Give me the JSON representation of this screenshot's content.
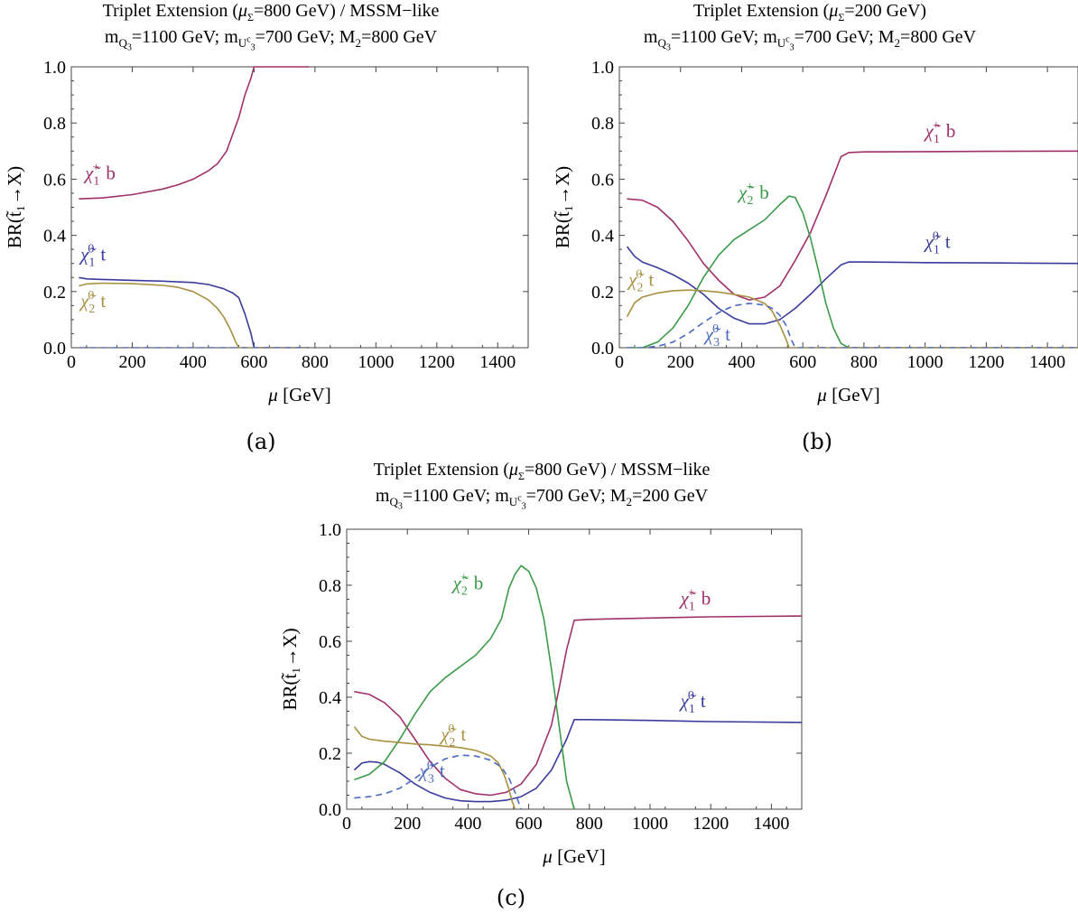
{
  "panels": [
    {
      "id": "a",
      "caption": "(a)",
      "title_line1": {
        "pre": "Triplet Extension (",
        "mu": "μ",
        "mu_sub": "Σ",
        "post": "=800 GeV) / MSSM−like"
      },
      "title_line2": {
        "q_pre": "m",
        "q_sub": "Q",
        "q_subsub": "3",
        "q_val": "=1100 GeV; m",
        "u_sub": "U",
        "u_subsup": "c",
        "u_subsub": "3",
        "u_val": "=700 GeV; M",
        "m_sub": "2",
        "m_val": "=800 GeV"
      }
    },
    {
      "id": "b",
      "caption": "(b)",
      "title_line1": {
        "pre": "Triplet Extension (",
        "mu": "μ",
        "mu_sub": "Σ",
        "post": "=200 GeV)"
      },
      "title_line2": {
        "q_pre": "m",
        "q_sub": "Q",
        "q_subsub": "3",
        "q_val": "=1100 GeV; m",
        "u_sub": "U",
        "u_subsup": "c",
        "u_subsub": "3",
        "u_val": "=700 GeV; M",
        "m_sub": "2",
        "m_val": "=800 GeV"
      }
    },
    {
      "id": "c",
      "caption": "(c)",
      "title_line1": {
        "pre": "Triplet Extension (",
        "mu": "μ",
        "mu_sub": "Σ",
        "post": "=800 GeV) / MSSM−like"
      },
      "title_line2": {
        "q_pre": "m",
        "q_sub": "Q",
        "q_subsub": "3",
        "q_val": "=1100 GeV; m",
        "u_sub": "U",
        "u_subsup": "c",
        "u_subsub": "3",
        "u_val": "=700 GeV; M",
        "m_sub": "2",
        "m_val": "=200 GeV"
      }
    }
  ],
  "colors": {
    "chi1p_b": "#a0306a",
    "chi1_0_t": "#3a3c9c",
    "chi2_0_t": "#a89040",
    "chi2p_b": "#3a9a48",
    "chi3_0_t": "#4a6ac0"
  },
  "chart_data": [
    {
      "type": "line",
      "xlabel": "μ [GeV]",
      "ylabel": "BR(t̃₁→X)",
      "xlim": [
        0,
        1500
      ],
      "ylim": [
        0,
        1.0
      ],
      "xticks": [
        "0",
        "200",
        "400",
        "600",
        "800",
        "1000",
        "1200",
        "1400"
      ],
      "yticks": [
        "0.0",
        "0.2",
        "0.4",
        "0.6",
        "0.8",
        "1.0"
      ],
      "series": [
        {
          "key": "chi1p_b",
          "name": "χ̃₁⁺ b",
          "style": "solid",
          "x": [
            25,
            100,
            200,
            300,
            350,
            400,
            450,
            480,
            510,
            530,
            550,
            570,
            590,
            600,
            700,
            780
          ],
          "y": [
            0.53,
            0.533,
            0.545,
            0.565,
            0.58,
            0.6,
            0.63,
            0.655,
            0.7,
            0.76,
            0.82,
            0.9,
            0.96,
            1.0,
            1.0,
            1.0
          ]
        },
        {
          "key": "chi1_0_t",
          "name": "χ̃₁⁰ t",
          "style": "solid",
          "x": [
            25,
            50,
            100,
            200,
            300,
            400,
            450,
            500,
            530,
            550,
            570,
            590,
            600,
            700,
            780
          ],
          "y": [
            0.25,
            0.245,
            0.243,
            0.24,
            0.237,
            0.232,
            0.225,
            0.21,
            0.195,
            0.178,
            0.12,
            0.05,
            0.0,
            0.0,
            0.0
          ]
        },
        {
          "key": "chi2_0_t",
          "name": "χ̃₂⁰ t",
          "style": "solid",
          "x": [
            25,
            50,
            100,
            200,
            300,
            350,
            400,
            450,
            480,
            500,
            520,
            540,
            550,
            600,
            780
          ],
          "y": [
            0.22,
            0.227,
            0.23,
            0.228,
            0.222,
            0.215,
            0.2,
            0.17,
            0.14,
            0.11,
            0.07,
            0.02,
            0.0,
            0.0,
            0.0
          ]
        },
        {
          "key": "chi3_0_t",
          "name": "χ̃₃⁰ t",
          "style": "dashed",
          "x": [
            25,
            780
          ],
          "y": [
            0.0,
            0.0
          ]
        }
      ],
      "annotations": [
        {
          "series": "chi1p_b",
          "x": 45,
          "y": 0.6
        },
        {
          "series": "chi1_0_t",
          "x": 30,
          "y": 0.31
        },
        {
          "series": "chi2_0_t",
          "x": 30,
          "y": 0.145
        }
      ]
    },
    {
      "type": "line",
      "xlabel": "μ [GeV]",
      "ylabel": "BR(t̃₁→X)",
      "xlim": [
        0,
        1500
      ],
      "ylim": [
        0,
        1.0
      ],
      "xticks": [
        "0",
        "200",
        "400",
        "600",
        "800",
        "1000",
        "1200",
        "1400"
      ],
      "yticks": [
        "0.0",
        "0.2",
        "0.4",
        "0.6",
        "0.8",
        "1.0"
      ],
      "series": [
        {
          "key": "chi1p_b",
          "name": "χ̃₁⁺ b",
          "style": "solid",
          "x": [
            25,
            75,
            125,
            175,
            225,
            275,
            325,
            375,
            425,
            475,
            525,
            575,
            625,
            675,
            725,
            750,
            800,
            1000,
            1200,
            1500
          ],
          "y": [
            0.53,
            0.525,
            0.5,
            0.45,
            0.38,
            0.3,
            0.24,
            0.19,
            0.17,
            0.18,
            0.22,
            0.31,
            0.41,
            0.54,
            0.68,
            0.695,
            0.697,
            0.698,
            0.699,
            0.7
          ]
        },
        {
          "key": "chi1_0_t",
          "name": "χ̃₁⁰ t",
          "style": "solid",
          "x": [
            25,
            50,
            75,
            125,
            175,
            225,
            275,
            325,
            375,
            425,
            475,
            525,
            575,
            625,
            675,
            725,
            750,
            800,
            1000,
            1200,
            1500
          ],
          "y": [
            0.36,
            0.325,
            0.305,
            0.285,
            0.26,
            0.23,
            0.19,
            0.14,
            0.105,
            0.085,
            0.085,
            0.1,
            0.14,
            0.19,
            0.245,
            0.295,
            0.305,
            0.305,
            0.303,
            0.302,
            0.3
          ]
        },
        {
          "key": "chi2p_b",
          "name": "χ̃₂⁺ b",
          "style": "solid",
          "x": [
            25,
            75,
            125,
            175,
            225,
            275,
            325,
            375,
            425,
            475,
            525,
            555,
            575,
            600,
            625,
            650,
            675,
            700,
            725,
            750,
            800,
            1500
          ],
          "y": [
            0.0,
            0.0,
            0.02,
            0.07,
            0.15,
            0.25,
            0.33,
            0.385,
            0.42,
            0.455,
            0.51,
            0.54,
            0.535,
            0.48,
            0.39,
            0.28,
            0.16,
            0.07,
            0.015,
            0.0,
            0.0,
            0.0
          ]
        },
        {
          "key": "chi2_0_t",
          "name": "χ̃₂⁰ t",
          "style": "solid",
          "x": [
            25,
            50,
            75,
            125,
            175,
            225,
            275,
            325,
            375,
            425,
            475,
            500,
            525,
            545,
            555,
            800,
            1500
          ],
          "y": [
            0.11,
            0.16,
            0.18,
            0.195,
            0.203,
            0.205,
            0.203,
            0.198,
            0.19,
            0.18,
            0.158,
            0.13,
            0.08,
            0.03,
            0.0,
            0.0,
            0.0
          ]
        },
        {
          "key": "chi3_0_t",
          "name": "χ̃₃⁰ t",
          "style": "dashed",
          "x": [
            25,
            75,
            125,
            175,
            225,
            275,
            325,
            375,
            425,
            475,
            500,
            525,
            545,
            560,
            575,
            800,
            1500
          ],
          "y": [
            0.0,
            0.0,
            0.005,
            0.02,
            0.05,
            0.09,
            0.125,
            0.15,
            0.158,
            0.152,
            0.14,
            0.115,
            0.08,
            0.035,
            0.0,
            0.0,
            0.0
          ]
        }
      ],
      "annotations": [
        {
          "series": "chi1p_b",
          "x": 1000,
          "y": 0.75
        },
        {
          "series": "chi1_0_t",
          "x": 1000,
          "y": 0.355
        },
        {
          "series": "chi2p_b",
          "x": 390,
          "y": 0.53
        },
        {
          "series": "chi2_0_t",
          "x": 30,
          "y": 0.22
        },
        {
          "series": "chi3_0_t",
          "x": 280,
          "y": 0.025
        }
      ]
    },
    {
      "type": "line",
      "xlabel": "μ [GeV]",
      "ylabel": "BR(t̃₁→X)",
      "xlim": [
        0,
        1500
      ],
      "ylim": [
        0,
        1.0
      ],
      "xticks": [
        "0",
        "200",
        "400",
        "600",
        "800",
        "1000",
        "1200",
        "1400"
      ],
      "yticks": [
        "0.0",
        "0.2",
        "0.4",
        "0.6",
        "0.8",
        "1.0"
      ],
      "series": [
        {
          "key": "chi1p_b",
          "name": "χ̃₁⁺ b",
          "style": "solid",
          "x": [
            25,
            75,
            125,
            175,
            225,
            275,
            325,
            375,
            425,
            475,
            525,
            575,
            625,
            675,
            700,
            725,
            750,
            800,
            1000,
            1200,
            1500
          ],
          "y": [
            0.42,
            0.41,
            0.38,
            0.33,
            0.25,
            0.17,
            0.11,
            0.07,
            0.055,
            0.05,
            0.06,
            0.09,
            0.16,
            0.3,
            0.43,
            0.57,
            0.675,
            0.678,
            0.683,
            0.687,
            0.69
          ]
        },
        {
          "key": "chi1_0_t",
          "name": "χ̃₁⁰ t",
          "style": "solid",
          "x": [
            25,
            50,
            75,
            100,
            125,
            175,
            225,
            275,
            325,
            375,
            425,
            475,
            525,
            575,
            625,
            675,
            725,
            750,
            800,
            1000,
            1200,
            1500
          ],
          "y": [
            0.14,
            0.165,
            0.17,
            0.168,
            0.16,
            0.13,
            0.09,
            0.06,
            0.04,
            0.03,
            0.027,
            0.027,
            0.032,
            0.045,
            0.075,
            0.14,
            0.25,
            0.32,
            0.32,
            0.317,
            0.313,
            0.31
          ]
        },
        {
          "key": "chi2p_b",
          "name": "χ̃₂⁺ b",
          "style": "solid",
          "x": [
            25,
            75,
            125,
            175,
            225,
            275,
            325,
            375,
            425,
            475,
            510,
            535,
            555,
            575,
            600,
            625,
            650,
            675,
            700,
            725,
            750
          ],
          "y": [
            0.105,
            0.125,
            0.17,
            0.25,
            0.34,
            0.42,
            0.47,
            0.51,
            0.55,
            0.61,
            0.68,
            0.79,
            0.84,
            0.87,
            0.85,
            0.79,
            0.68,
            0.5,
            0.3,
            0.1,
            0.0
          ]
        },
        {
          "key": "chi2_0_t",
          "name": "χ̃₂⁰ t",
          "style": "solid",
          "x": [
            25,
            50,
            75,
            125,
            175,
            225,
            275,
            325,
            375,
            425,
            475,
            500,
            520,
            535,
            545,
            555
          ],
          "y": [
            0.295,
            0.26,
            0.25,
            0.243,
            0.238,
            0.233,
            0.23,
            0.225,
            0.22,
            0.21,
            0.19,
            0.165,
            0.12,
            0.07,
            0.03,
            0.0
          ]
        },
        {
          "key": "chi3_0_t",
          "name": "χ̃₃⁰ t",
          "style": "dashed",
          "x": [
            25,
            75,
            125,
            175,
            225,
            275,
            325,
            375,
            425,
            475,
            510,
            535,
            555,
            565,
            575
          ],
          "y": [
            0.04,
            0.045,
            0.055,
            0.075,
            0.11,
            0.15,
            0.18,
            0.193,
            0.19,
            0.175,
            0.15,
            0.11,
            0.06,
            0.03,
            0.0
          ]
        }
      ],
      "annotations": [
        {
          "series": "chi1p_b",
          "x": 1100,
          "y": 0.73
        },
        {
          "series": "chi1_0_t",
          "x": 1100,
          "y": 0.365
        },
        {
          "series": "chi2p_b",
          "x": 350,
          "y": 0.785
        },
        {
          "series": "chi2_0_t",
          "x": 310,
          "y": 0.245
        },
        {
          "series": "chi3_0_t",
          "x": 240,
          "y": 0.115
        }
      ]
    }
  ]
}
